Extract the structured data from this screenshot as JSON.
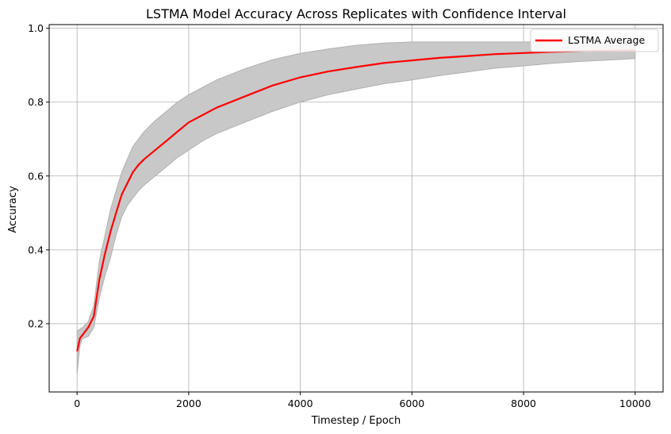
{
  "chart_data": {
    "type": "line",
    "title": "LSTMA Model Accuracy Across Replicates with Confidence Interval",
    "xlabel": "Timestep / Epoch",
    "ylabel": "Accuracy",
    "xlim": [
      -500,
      10500
    ],
    "ylim": [
      0.015,
      1.01
    ],
    "xticks": [
      0,
      2000,
      4000,
      6000,
      8000,
      10000
    ],
    "yticks": [
      0.2,
      0.4,
      0.6,
      0.8,
      1.0
    ],
    "xtick_labels": [
      "0",
      "2000",
      "4000",
      "6000",
      "8000",
      "10000"
    ],
    "ytick_labels": [
      "0.2",
      "0.4",
      "0.6",
      "0.8",
      "1.0"
    ],
    "grid": true,
    "legend_position": "top-right",
    "colors": {
      "series": "#ff0000",
      "band_fill": "#c8c8c8",
      "band_edge": "#b0b0b0",
      "grid": "#b0b0b0"
    },
    "series": [
      {
        "name": "LSTMA Average",
        "x": [
          0,
          50,
          100,
          200,
          300,
          400,
          500,
          600,
          700,
          800,
          900,
          1000,
          1100,
          1200,
          1400,
          1600,
          1800,
          2000,
          2250,
          2500,
          3000,
          3500,
          4000,
          4500,
          5000,
          5500,
          6000,
          6500,
          7000,
          7500,
          8000,
          8500,
          9000,
          9500,
          10000
        ],
        "y": [
          0.125,
          0.16,
          0.17,
          0.19,
          0.22,
          0.32,
          0.39,
          0.45,
          0.5,
          0.55,
          0.58,
          0.61,
          0.63,
          0.645,
          0.67,
          0.695,
          0.72,
          0.745,
          0.765,
          0.785,
          0.815,
          0.845,
          0.867,
          0.883,
          0.895,
          0.906,
          0.913,
          0.92,
          0.925,
          0.93,
          0.933,
          0.936,
          0.938,
          0.939,
          0.94
        ]
      }
    ],
    "confidence_band": {
      "x": [
        0,
        50,
        100,
        200,
        300,
        400,
        500,
        600,
        700,
        800,
        900,
        1000,
        1100,
        1200,
        1400,
        1600,
        1800,
        2000,
        2250,
        2500,
        3000,
        3500,
        4000,
        4500,
        5000,
        5500,
        6000,
        6500,
        7000,
        7500,
        8000,
        8500,
        9000,
        9500,
        10000
      ],
      "lower": [
        0.065,
        0.14,
        0.16,
        0.165,
        0.19,
        0.27,
        0.33,
        0.38,
        0.44,
        0.49,
        0.52,
        0.54,
        0.56,
        0.575,
        0.6,
        0.625,
        0.65,
        0.67,
        0.695,
        0.715,
        0.745,
        0.775,
        0.8,
        0.82,
        0.835,
        0.85,
        0.86,
        0.872,
        0.882,
        0.892,
        0.898,
        0.905,
        0.91,
        0.914,
        0.918
      ],
      "upper": [
        0.18,
        0.185,
        0.19,
        0.205,
        0.25,
        0.37,
        0.44,
        0.51,
        0.56,
        0.61,
        0.645,
        0.68,
        0.7,
        0.72,
        0.75,
        0.775,
        0.8,
        0.82,
        0.84,
        0.86,
        0.89,
        0.915,
        0.932,
        0.944,
        0.954,
        0.96,
        0.963,
        0.963,
        0.963,
        0.963,
        0.963,
        0.963,
        0.962,
        0.962,
        0.962
      ]
    }
  }
}
